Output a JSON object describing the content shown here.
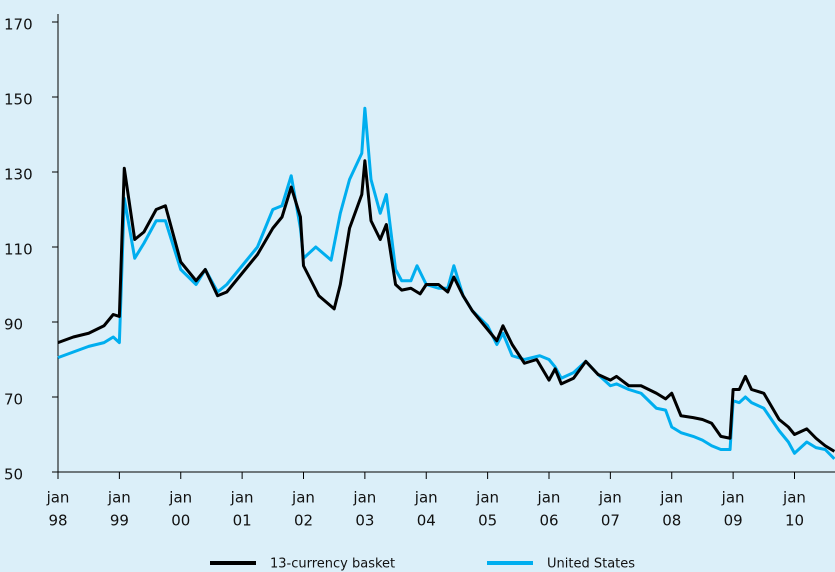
{
  "chart_data": {
    "type": "line",
    "xlim": [
      1998,
      2010.66
    ],
    "xticks": [
      {
        "value": 1998,
        "label": [
          "jan",
          "98"
        ]
      },
      {
        "value": 1999,
        "label": [
          "jan",
          "99"
        ]
      },
      {
        "value": 2000,
        "label": [
          "jan",
          "00"
        ]
      },
      {
        "value": 2001,
        "label": [
          "jan",
          "01"
        ]
      },
      {
        "value": 2002,
        "label": [
          "jan",
          "02"
        ]
      },
      {
        "value": 2003,
        "label": [
          "jan",
          "03"
        ]
      },
      {
        "value": 2004,
        "label": [
          "jan",
          "04"
        ]
      },
      {
        "value": 2005,
        "label": [
          "jan",
          "05"
        ]
      },
      {
        "value": 2006,
        "label": [
          "jan",
          "06"
        ]
      },
      {
        "value": 2007,
        "label": [
          "jan",
          "07"
        ]
      },
      {
        "value": 2008,
        "label": [
          "jan",
          "08"
        ]
      },
      {
        "value": 2009,
        "label": [
          "jan",
          "09"
        ]
      },
      {
        "value": 2010,
        "label": [
          "jan",
          "10"
        ]
      }
    ],
    "ylim": [
      50,
      170
    ],
    "yticks": [
      50,
      70,
      90,
      110,
      130,
      150,
      170
    ],
    "grid": false,
    "series": [
      {
        "name": "13-currency basket",
        "color": "#000000",
        "x": [
          1998.0,
          1998.25,
          1998.5,
          1998.75,
          1998.9,
          1999.0,
          1999.08,
          1999.25,
          1999.4,
          1999.6,
          1999.75,
          2000.0,
          2000.25,
          2000.4,
          2000.6,
          2000.75,
          2001.0,
          2001.25,
          2001.5,
          2001.65,
          2001.8,
          2001.95,
          2002.0,
          2002.25,
          2002.5,
          2002.6,
          2002.75,
          2002.95,
          2003.0,
          2003.1,
          2003.25,
          2003.35,
          2003.5,
          2003.6,
          2003.75,
          2003.9,
          2004.0,
          2004.2,
          2004.35,
          2004.45,
          2004.6,
          2004.75,
          2005.0,
          2005.15,
          2005.25,
          2005.4,
          2005.6,
          2005.8,
          2006.0,
          2006.1,
          2006.2,
          2006.4,
          2006.6,
          2006.8,
          2007.0,
          2007.1,
          2007.3,
          2007.5,
          2007.75,
          2007.9,
          2008.0,
          2008.15,
          2008.35,
          2008.5,
          2008.65,
          2008.8,
          2008.95,
          2009.0,
          2009.1,
          2009.2,
          2009.3,
          2009.5,
          2009.75,
          2009.9,
          2010.0,
          2010.2,
          2010.35,
          2010.5,
          2010.65
        ],
        "values": [
          84.5,
          86,
          87,
          89,
          92,
          91.5,
          131,
          112,
          114,
          120,
          121,
          106,
          101,
          104,
          97,
          98,
          103,
          108,
          115,
          118,
          126,
          118,
          105,
          97,
          93.5,
          100,
          115,
          124,
          133,
          117,
          112,
          116,
          100,
          98.5,
          99,
          97.5,
          100,
          100,
          98,
          102,
          97,
          93,
          88,
          85,
          89,
          84,
          79,
          80,
          74.5,
          77.5,
          73.5,
          75,
          79.5,
          76,
          74.5,
          75.5,
          73,
          73,
          71,
          69.5,
          71,
          65,
          64.5,
          64,
          63,
          59.5,
          59,
          72,
          72,
          75.5,
          72,
          71,
          64,
          62,
          60,
          61.5,
          59,
          57,
          55.5
        ]
      },
      {
        "name": "United States",
        "color": "#00aeef",
        "x": [
          1998.0,
          1998.25,
          1998.5,
          1998.75,
          1998.9,
          1999.0,
          1999.08,
          1999.25,
          1999.4,
          1999.6,
          1999.75,
          2000.0,
          2000.25,
          2000.4,
          2000.6,
          2000.75,
          2001.0,
          2001.25,
          2001.5,
          2001.65,
          2001.8,
          2001.95,
          2002.0,
          2002.2,
          2002.45,
          2002.6,
          2002.75,
          2002.95,
          2003.0,
          2003.1,
          2003.25,
          2003.35,
          2003.5,
          2003.6,
          2003.75,
          2003.85,
          2004.0,
          2004.2,
          2004.35,
          2004.45,
          2004.6,
          2004.75,
          2005.0,
          2005.15,
          2005.25,
          2005.4,
          2005.6,
          2005.85,
          2006.0,
          2006.1,
          2006.2,
          2006.4,
          2006.6,
          2006.8,
          2007.0,
          2007.1,
          2007.3,
          2007.5,
          2007.75,
          2007.9,
          2008.0,
          2008.15,
          2008.35,
          2008.5,
          2008.65,
          2008.8,
          2008.95,
          2009.0,
          2009.1,
          2009.2,
          2009.3,
          2009.5,
          2009.75,
          2009.9,
          2010.0,
          2010.2,
          2010.35,
          2010.5,
          2010.65
        ],
        "values": [
          80.5,
          82,
          83.5,
          84.5,
          86,
          84.5,
          123,
          107,
          111,
          117,
          117,
          104,
          100,
          104,
          98,
          100,
          105,
          110,
          120,
          121,
          129,
          115,
          107,
          110,
          106.5,
          119,
          128,
          135,
          147,
          128,
          119,
          124,
          104,
          101,
          101,
          105,
          100,
          99,
          99,
          105,
          97,
          93,
          89,
          84,
          87,
          81,
          80,
          81,
          80,
          78,
          75,
          76.5,
          79.5,
          76,
          73,
          73.5,
          72,
          71,
          67,
          66.5,
          62,
          60.5,
          59.5,
          58.5,
          57,
          56,
          56,
          69,
          68.5,
          70,
          68.5,
          67,
          61,
          58,
          55,
          58,
          56.5,
          56,
          53.5
        ]
      }
    ]
  }
}
